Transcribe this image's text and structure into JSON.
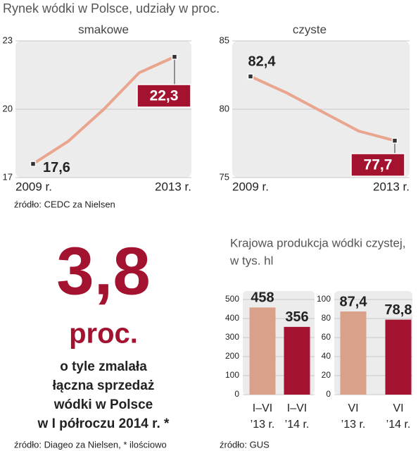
{
  "title": "Rynek wódki w Polsce, udziały w proc.",
  "source_top": "źródło: CEDC za Nielsen",
  "chart_data": [
    {
      "type": "line",
      "title": "smakowe",
      "categories": [
        "2009 r.",
        null,
        null,
        null,
        "2013 r."
      ],
      "values": [
        17.6,
        18.6,
        20.0,
        21.6,
        22.3
      ],
      "value_labels": [
        "17,6",
        null,
        null,
        null,
        "22,3"
      ],
      "color": "#e9a58e",
      "label_color": "#a3122e",
      "ylim": [
        17,
        23
      ],
      "yticks": [
        17,
        20,
        23
      ],
      "grid": true
    },
    {
      "type": "line",
      "title": "czyste",
      "categories": [
        "2009 r.",
        null,
        null,
        null,
        "2013 r."
      ],
      "values": [
        82.4,
        81.2,
        79.8,
        78.4,
        77.7
      ],
      "value_labels": [
        "82,4",
        null,
        null,
        null,
        "77,7"
      ],
      "color": "#e9a58e",
      "label_color": "#a3122e",
      "ylim": [
        75,
        85
      ],
      "yticks": [
        75,
        80,
        85
      ],
      "grid": true
    },
    {
      "type": "bar",
      "categories": [
        [
          "I–VI",
          "’13 r."
        ],
        [
          "I–VI",
          "’14 r."
        ]
      ],
      "values": [
        458,
        356
      ],
      "colors": [
        "#d9a08a",
        "#a3122e"
      ],
      "ylim": [
        0,
        500
      ],
      "yticks": [
        0,
        100,
        200,
        300,
        400,
        500
      ],
      "grid": true
    },
    {
      "type": "bar",
      "categories": [
        [
          "VI",
          "’13 r."
        ],
        [
          "VI",
          "’14 r."
        ]
      ],
      "values": [
        87.4,
        78.8
      ],
      "value_labels": [
        "87,4",
        "78,8"
      ],
      "colors": [
        "#d9a08a",
        "#a3122e"
      ],
      "ylim": [
        0,
        100
      ],
      "yticks": [
        0,
        20,
        40,
        60,
        80,
        100
      ],
      "grid": true
    }
  ],
  "callout": {
    "number": "3,8",
    "unit": "proc.",
    "text_lines": [
      "o tyle zmalała",
      "łączna sprzedaż",
      "wódki w Polsce",
      "w I półroczu 2014 r. *"
    ],
    "source": "źródło: Diageo za Nielsen, * ilościowo"
  },
  "production": {
    "title_lines": [
      "Krajowa produkcja wódki czystej,",
      "w tys. hl"
    ],
    "source": "źródło: GUS"
  }
}
